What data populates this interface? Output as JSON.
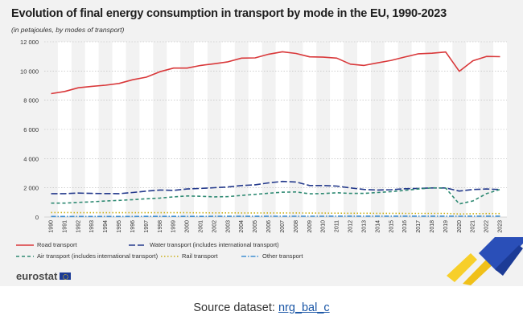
{
  "title": "Evolution of final energy consumption in transport by mode in the EU, 1990-2023",
  "subtitle": "(in petajoules, by modes of transport)",
  "logo_text": "eurostat",
  "source_label": "Source dataset:",
  "source_link": "nrg_bal_c",
  "chart_data": {
    "type": "line",
    "title": "Evolution of final energy consumption in transport by mode in the EU, 1990-2023",
    "ylabel": "petajoules",
    "ylim": [
      0,
      12000
    ],
    "yticks": [
      0,
      2000,
      4000,
      6000,
      8000,
      10000,
      12000
    ],
    "ytick_labels": [
      "0",
      "2 000",
      "4 000",
      "6 000",
      "8 000",
      "10 000",
      "12 000"
    ],
    "x": [
      "1990",
      "1991",
      "1992",
      "1993",
      "1994",
      "1995",
      "1996",
      "1997",
      "1998",
      "1999",
      "2000",
      "2001",
      "2002",
      "2003",
      "2004",
      "2005",
      "2006",
      "2007",
      "2008",
      "2009",
      "2010",
      "2011",
      "2012",
      "2013",
      "2014",
      "2015",
      "2016",
      "2017",
      "2018",
      "2019",
      "2020",
      "2021",
      "2022",
      "2023"
    ],
    "series": [
      {
        "name": "Road transport",
        "color": "#d9383a",
        "dash": "solid",
        "values": [
          8450,
          8600,
          8850,
          8950,
          9030,
          9150,
          9400,
          9580,
          9950,
          10200,
          10200,
          10380,
          10500,
          10630,
          10880,
          10900,
          11150,
          11320,
          11200,
          10970,
          10950,
          10880,
          10470,
          10380,
          10560,
          10730,
          10960,
          11180,
          11220,
          11300,
          9980,
          10700,
          11000,
          10980
        ]
      },
      {
        "name": "Water transport (includes international transport)",
        "color": "#243a8c",
        "dash": "longdash",
        "values": [
          1600,
          1600,
          1640,
          1620,
          1610,
          1600,
          1680,
          1770,
          1850,
          1830,
          1920,
          1960,
          2010,
          2060,
          2160,
          2210,
          2340,
          2440,
          2400,
          2160,
          2160,
          2120,
          1990,
          1890,
          1850,
          1870,
          1940,
          1960,
          1990,
          1990,
          1780,
          1880,
          1920,
          1880
        ]
      },
      {
        "name": "Air transport (includes international transport)",
        "color": "#2f8a73",
        "dash": "dash",
        "values": [
          950,
          950,
          1000,
          1040,
          1100,
          1140,
          1190,
          1250,
          1300,
          1380,
          1440,
          1420,
          1380,
          1400,
          1480,
          1550,
          1630,
          1700,
          1720,
          1590,
          1610,
          1660,
          1620,
          1620,
          1680,
          1740,
          1830,
          1920,
          2000,
          1980,
          900,
          1100,
          1600,
          1890
        ]
      },
      {
        "name": "Rail transport",
        "color": "#c9b01a",
        "dash": "dot",
        "values": [
          310,
          310,
          300,
          300,
          300,
          300,
          300,
          300,
          300,
          295,
          295,
          290,
          285,
          285,
          280,
          280,
          280,
          280,
          280,
          270,
          270,
          265,
          260,
          260,
          255,
          255,
          250,
          250,
          250,
          245,
          210,
          225,
          235,
          235
        ]
      },
      {
        "name": "Other transport",
        "color": "#3f8fd1",
        "dash": "dashdot",
        "values": [
          40,
          40,
          40,
          40,
          40,
          40,
          40,
          45,
          45,
          45,
          45,
          45,
          50,
          50,
          50,
          50,
          55,
          55,
          55,
          55,
          55,
          60,
          60,
          60,
          60,
          60,
          60,
          60,
          60,
          60,
          55,
          60,
          60,
          60
        ]
      }
    ]
  }
}
